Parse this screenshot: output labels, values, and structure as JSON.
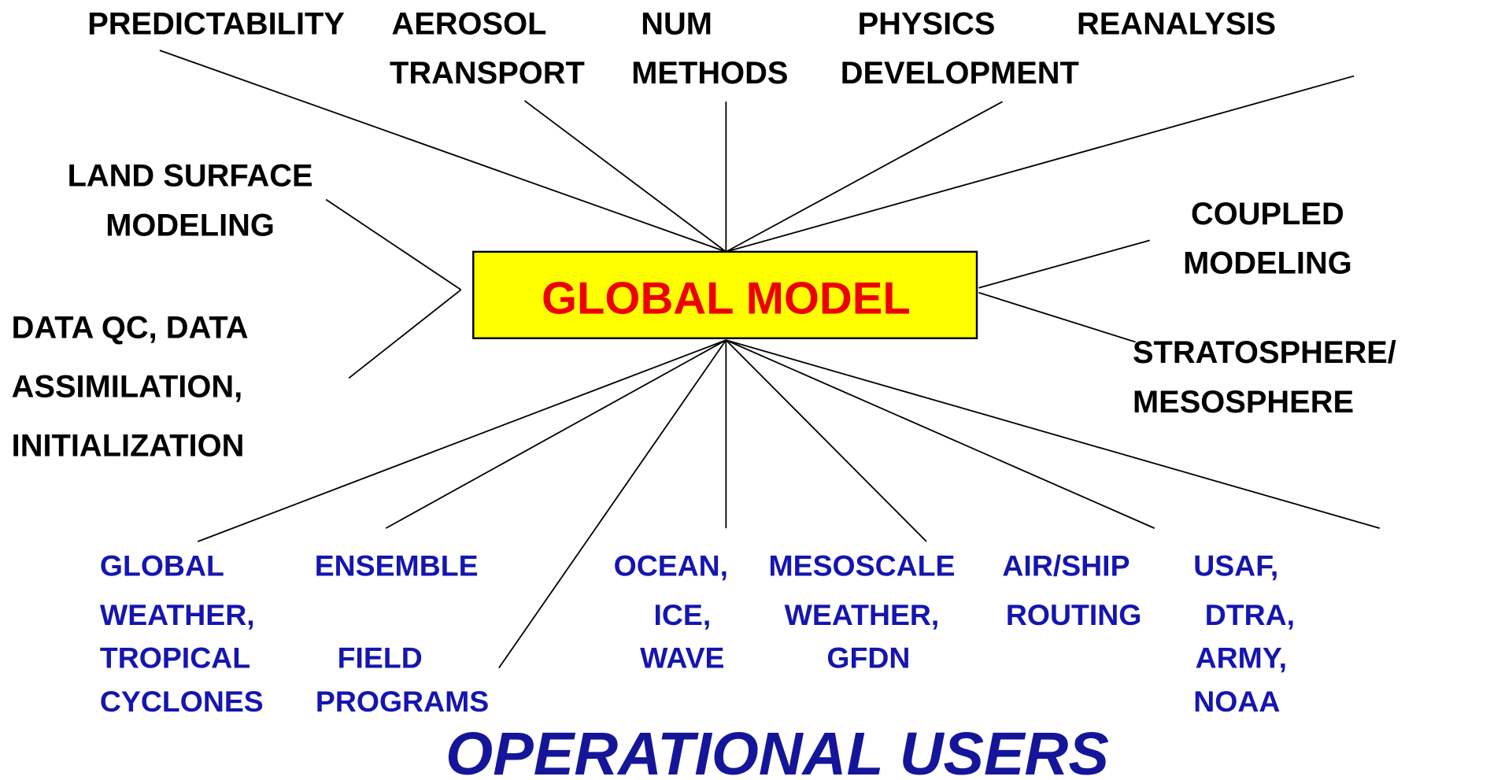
{
  "center": {
    "label": "GLOBAL MODEL"
  },
  "research": [
    {
      "lines": [
        "PREDICTABILITY"
      ]
    },
    {
      "lines": [
        "AEROSOL",
        "TRANSPORT"
      ]
    },
    {
      "lines": [
        "NUM",
        "METHODS"
      ]
    },
    {
      "lines": [
        "PHYSICS",
        "DEVELOPMENT"
      ]
    },
    {
      "lines": [
        "REANALYSIS"
      ]
    },
    {
      "lines": [
        "LAND SURFACE",
        "MODELING"
      ]
    },
    {
      "lines": [
        "DATA QC, DATA",
        "ASSIMILATION,",
        "INITIALIZATION"
      ]
    },
    {
      "lines": [
        "COUPLED",
        "MODELING"
      ]
    },
    {
      "lines": [
        "STRATOSPHERE/",
        "MESOSPHERE"
      ]
    }
  ],
  "users": [
    {
      "lines": [
        "GLOBAL",
        "WEATHER,",
        "TROPICAL",
        "CYCLONES"
      ]
    },
    {
      "lines": [
        "ENSEMBLE"
      ]
    },
    {
      "lines": [
        "FIELD",
        "PROGRAMS"
      ]
    },
    {
      "lines": [
        "OCEAN,",
        "ICE,",
        "WAVE"
      ]
    },
    {
      "lines": [
        "MESOSCALE",
        "WEATHER,",
        "GFDN"
      ]
    },
    {
      "lines": [
        "AIR/SHIP",
        "ROUTING"
      ]
    },
    {
      "lines": [
        "USAF,",
        "DTRA,",
        "ARMY,",
        "NOAA"
      ]
    }
  ],
  "footer": {
    "title": "OPERATIONAL USERS"
  }
}
